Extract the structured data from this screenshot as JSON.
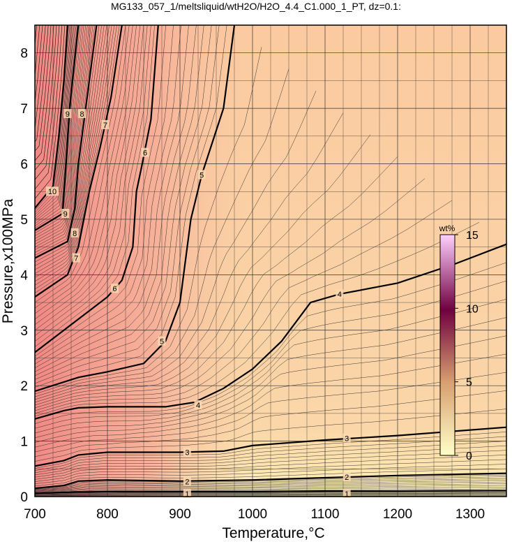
{
  "chart_data": {
    "type": "heatmap",
    "title": "MG133_057_1/meltsliquid/wtH2O/H2O_4.4_C1.000_1_PT, dz=0.1:",
    "xlabel": "Temperature,°C",
    "ylabel": "Pressure,x100MPa",
    "xlim": [
      700,
      1350
    ],
    "ylim": [
      0,
      8.5
    ],
    "x_ticks": [
      "700",
      "800",
      "900",
      "1000",
      "1100",
      "1200",
      "1300"
    ],
    "y_ticks": [
      "0",
      "1",
      "2",
      "3",
      "4",
      "5",
      "6",
      "7",
      "8"
    ],
    "grid": true,
    "colorbar": {
      "title": "wt%",
      "ticks": [
        "0",
        "5",
        "10",
        "15"
      ],
      "range": [
        0,
        15
      ],
      "colors": [
        "#ffffc8",
        "#d8a070",
        "#700040",
        "#ffd0ff"
      ],
      "placement": "right-inside"
    },
    "contours": [
      {
        "level": "1",
        "label_at": [
          [
            910,
            0.05
          ],
          [
            1130,
            0.05
          ]
        ],
        "points": [
          [
            700,
            0.06
          ],
          [
            750,
            0.08
          ],
          [
            800,
            0.09
          ],
          [
            900,
            0.09
          ],
          [
            1000,
            0.09
          ],
          [
            1100,
            0.1
          ],
          [
            1200,
            0.1
          ],
          [
            1350,
            0.11
          ]
        ]
      },
      {
        "level": "2",
        "label_at": [
          [
            910,
            0.27
          ],
          [
            1130,
            0.35
          ]
        ],
        "points": [
          [
            700,
            0.15
          ],
          [
            740,
            0.2
          ],
          [
            760,
            0.28
          ],
          [
            800,
            0.3
          ],
          [
            900,
            0.28
          ],
          [
            1000,
            0.3
          ],
          [
            1100,
            0.34
          ],
          [
            1200,
            0.38
          ],
          [
            1350,
            0.42
          ]
        ]
      },
      {
        "level": "3",
        "label_at": [
          [
            910,
            0.8
          ],
          [
            1130,
            1.05
          ]
        ],
        "points": [
          [
            700,
            0.55
          ],
          [
            740,
            0.65
          ],
          [
            760,
            0.75
          ],
          [
            800,
            0.8
          ],
          [
            900,
            0.8
          ],
          [
            960,
            0.82
          ],
          [
            1000,
            0.92
          ],
          [
            1100,
            1.02
          ],
          [
            1200,
            1.1
          ],
          [
            1350,
            1.25
          ]
        ]
      },
      {
        "level": "4",
        "label_at": [
          [
            925,
            1.65
          ],
          [
            1120,
            3.65
          ]
        ],
        "points": [
          [
            700,
            1.4
          ],
          [
            740,
            1.55
          ],
          [
            760,
            1.6
          ],
          [
            800,
            1.62
          ],
          [
            880,
            1.62
          ],
          [
            920,
            1.7
          ],
          [
            960,
            1.95
          ],
          [
            1000,
            2.3
          ],
          [
            1040,
            2.8
          ],
          [
            1080,
            3.5
          ],
          [
            1120,
            3.65
          ],
          [
            1160,
            3.75
          ],
          [
            1200,
            3.85
          ],
          [
            1280,
            4.2
          ],
          [
            1350,
            4.55
          ]
        ]
      },
      {
        "level": "5",
        "label_at": [
          [
            875,
            2.8
          ],
          [
            930,
            5.8
          ]
        ],
        "points": [
          [
            700,
            1.9
          ],
          [
            760,
            2.15
          ],
          [
            800,
            2.25
          ],
          [
            850,
            2.4
          ],
          [
            880,
            2.8
          ],
          [
            900,
            3.5
          ],
          [
            910,
            4.5
          ],
          [
            915,
            5.0
          ],
          [
            930,
            5.8
          ],
          [
            960,
            7.0
          ],
          [
            975,
            8.5
          ]
        ]
      },
      {
        "level": "6",
        "label_at": [
          [
            810,
            3.75
          ],
          [
            852,
            6.2
          ]
        ],
        "points": [
          [
            700,
            2.6
          ],
          [
            760,
            3.2
          ],
          [
            800,
            3.6
          ],
          [
            820,
            3.9
          ],
          [
            835,
            4.5
          ],
          [
            840,
            5.5
          ],
          [
            848,
            6.0
          ],
          [
            860,
            6.8
          ],
          [
            870,
            8.5
          ]
        ]
      },
      {
        "level": "7",
        "label_at": [
          [
            757,
            4.3
          ],
          [
            797,
            6.7
          ]
        ],
        "points": [
          [
            700,
            3.6
          ],
          [
            745,
            4.0
          ],
          [
            760,
            4.5
          ],
          [
            775,
            5.5
          ],
          [
            790,
            6.3
          ],
          [
            805,
            7.2
          ],
          [
            820,
            8.5
          ]
        ]
      },
      {
        "level": "8",
        "label_at": [
          [
            755,
            4.75
          ],
          [
            765,
            6.9
          ]
        ],
        "points": [
          [
            700,
            4.3
          ],
          [
            745,
            4.6
          ],
          [
            755,
            5.2
          ],
          [
            760,
            6.0
          ],
          [
            770,
            7.0
          ],
          [
            785,
            8.5
          ]
        ]
      },
      {
        "level": "9",
        "label_at": [
          [
            742,
            5.1
          ],
          [
            745,
            6.9
          ]
        ],
        "points": [
          [
            700,
            4.8
          ],
          [
            738,
            5.1
          ],
          [
            743,
            6.0
          ],
          [
            748,
            7.0
          ],
          [
            760,
            8.5
          ]
        ]
      },
      {
        "level": "10",
        "label_at": [
          [
            724,
            5.5
          ]
        ],
        "points": [
          [
            700,
            5.2
          ],
          [
            725,
            5.6
          ],
          [
            733,
            6.5
          ],
          [
            740,
            7.5
          ],
          [
            745,
            8.5
          ]
        ]
      }
    ]
  }
}
